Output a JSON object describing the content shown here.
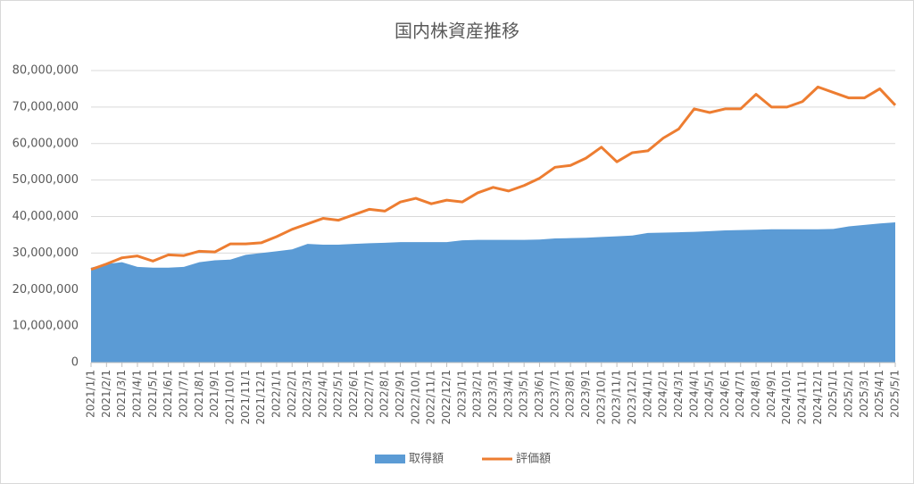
{
  "chart_data": {
    "type": "area-line",
    "title": "国内株資産推移",
    "categories": [
      "2021/1/1",
      "2021/2/1",
      "2021/3/1",
      "2021/4/1",
      "2021/5/1",
      "2021/6/1",
      "2021/7/1",
      "2021/8/1",
      "2021/9/1",
      "2021/10/1",
      "2021/11/1",
      "2021/12/1",
      "2022/1/1",
      "2022/2/1",
      "2022/3/1",
      "2022/4/1",
      "2022/5/1",
      "2022/6/1",
      "2022/7/1",
      "2022/8/1",
      "2022/9/1",
      "2022/10/1",
      "2022/11/1",
      "2022/12/1",
      "2023/1/1",
      "2023/2/1",
      "2023/3/1",
      "2023/4/1",
      "2023/5/1",
      "2023/6/1",
      "2023/7/1",
      "2023/8/1",
      "2023/9/1",
      "2023/10/1",
      "2023/11/1",
      "2023/12/1",
      "2024/1/1",
      "2024/2/1",
      "2024/3/1",
      "2024/4/1",
      "2024/5/1",
      "2024/6/1",
      "2024/7/1",
      "2024/8/1",
      "2024/9/1",
      "2024/10/1",
      "2024/11/1",
      "2024/12/1",
      "2025/1/1",
      "2025/2/1",
      "2025/3/1",
      "2025/4/1",
      "2025/5/1"
    ],
    "series": [
      {
        "name": "取得額",
        "kind": "area",
        "color": "#5b9bd5",
        "values": [
          26000000,
          27000000,
          27500000,
          26200000,
          26000000,
          26000000,
          26200000,
          27500000,
          28000000,
          28200000,
          29500000,
          30000000,
          30500000,
          31000000,
          32500000,
          32300000,
          32300000,
          32500000,
          32700000,
          32800000,
          33000000,
          33000000,
          33000000,
          33000000,
          33500000,
          33600000,
          33600000,
          33600000,
          33600000,
          33700000,
          34000000,
          34100000,
          34200000,
          34400000,
          34600000,
          34800000,
          35500000,
          35600000,
          35700000,
          35800000,
          36000000,
          36200000,
          36300000,
          36400000,
          36500000,
          36500000,
          36500000,
          36500000,
          36600000,
          37300000,
          37700000,
          38100000,
          38400000
        ]
      },
      {
        "name": "評価額",
        "kind": "line",
        "color": "#ed7d31",
        "values": [
          25500000,
          27000000,
          28700000,
          29200000,
          27800000,
          29500000,
          29300000,
          30500000,
          30300000,
          32500000,
          32500000,
          32800000,
          34500000,
          36500000,
          38000000,
          39500000,
          39000000,
          40500000,
          42000000,
          41500000,
          44000000,
          45000000,
          43500000,
          44500000,
          44000000,
          46500000,
          48000000,
          47000000,
          48500000,
          50500000,
          53500000,
          54000000,
          56000000,
          59000000,
          55000000,
          57500000,
          58000000,
          61500000,
          64000000,
          69500000,
          68500000,
          69500000,
          69500000,
          73500000,
          70000000,
          70000000,
          71500000,
          75500000,
          74000000,
          72500000,
          72500000,
          75000000,
          70500000
        ]
      }
    ],
    "ylim": [
      0,
      80000000
    ],
    "yticks": [
      {
        "value": 0,
        "label": "0"
      },
      {
        "value": 10000000,
        "label": "10,000,000"
      },
      {
        "value": 20000000,
        "label": "20,000,000"
      },
      {
        "value": 30000000,
        "label": "30,000,000"
      },
      {
        "value": 40000000,
        "label": "40,000,000"
      },
      {
        "value": 50000000,
        "label": "50,000,000"
      },
      {
        "value": 60000000,
        "label": "60,000,000"
      },
      {
        "value": 70000000,
        "label": "70,000,000"
      },
      {
        "value": 80000000,
        "label": "80,000,000"
      }
    ],
    "grid": true,
    "legend": "bottom"
  }
}
